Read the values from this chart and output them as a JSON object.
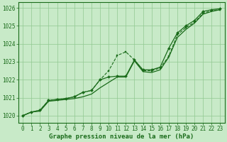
{
  "xlabel": "Graphe pression niveau de la mer (hPa)",
  "ylim": [
    1019.6,
    1026.3
  ],
  "xlim": [
    -0.5,
    23.5
  ],
  "yticks": [
    1020,
    1021,
    1022,
    1023,
    1024,
    1025,
    1026
  ],
  "xticks": [
    0,
    1,
    2,
    3,
    4,
    5,
    6,
    7,
    8,
    9,
    10,
    11,
    12,
    13,
    14,
    15,
    16,
    17,
    18,
    19,
    20,
    21,
    22,
    23
  ],
  "bg_color": "#c8eac8",
  "grid_color": "#90c890",
  "line_color": "#1a6b1a",
  "line1_y": [
    1020.0,
    1020.2,
    1020.25,
    1020.8,
    1020.85,
    1020.9,
    1020.95,
    1021.05,
    1021.2,
    1021.55,
    1021.85,
    1022.15,
    1022.15,
    1023.05,
    1022.45,
    1022.4,
    1022.55,
    1023.25,
    1024.35,
    1024.8,
    1025.15,
    1025.65,
    1025.8,
    1025.9
  ],
  "line2_y": [
    1020.0,
    1020.2,
    1020.3,
    1020.85,
    1020.9,
    1020.95,
    1021.05,
    1021.3,
    1021.4,
    1022.0,
    1022.5,
    1023.35,
    1023.55,
    1023.1,
    1022.5,
    1022.5,
    1022.65,
    1023.3,
    1024.5,
    1024.9,
    1025.2,
    1025.7,
    1025.85,
    1025.9
  ],
  "line3_y": [
    1020.0,
    1020.2,
    1020.3,
    1020.85,
    1020.9,
    1020.95,
    1021.05,
    1021.3,
    1021.4,
    1022.0,
    1022.15,
    1022.2,
    1022.2,
    1023.1,
    1022.55,
    1022.55,
    1022.7,
    1023.75,
    1024.6,
    1025.0,
    1025.3,
    1025.8,
    1025.9,
    1025.95
  ],
  "xlabel_fontsize": 6.5,
  "tick_fontsize": 5.5
}
